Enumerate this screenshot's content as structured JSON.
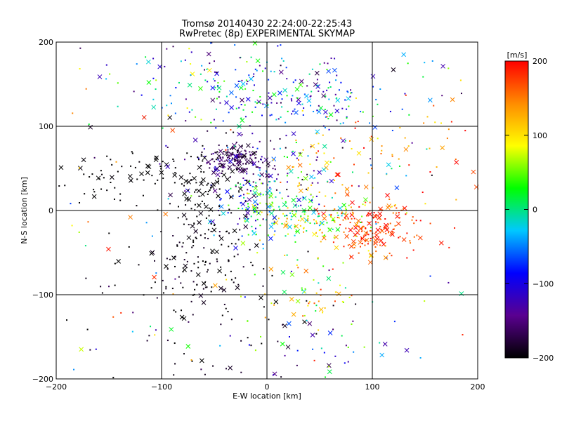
{
  "chart_data": {
    "type": "scatter",
    "title": "Tromsø 20140430 22:24:00-22:25:43",
    "subtitle": "RwPretec (8p) EXPERIMENTAL SKYMAP",
    "xlabel": "E-W location [km]",
    "ylabel": "N-S location [km]",
    "xlim": [
      -200,
      200
    ],
    "ylim": [
      -200,
      200
    ],
    "xticks": [
      -200,
      -100,
      0,
      100,
      200
    ],
    "yticks": [
      -200,
      -100,
      0,
      100,
      200
    ],
    "grid": true,
    "colorbar": {
      "label": "[m/s]",
      "min": -200,
      "max": 200,
      "ticks": [
        -200,
        -100,
        0,
        100,
        200
      ],
      "palette": [
        "#000000",
        "#5a0090",
        "#0000ff",
        "#00c8ff",
        "#00ff00",
        "#ffff00",
        "#ff8c00",
        "#ff0000"
      ]
    },
    "markers": {
      "dot": "small point",
      "cross": "x"
    },
    "clusters": [
      {
        "cx": -30,
        "cy": 62,
        "rx": 12,
        "ry": 8,
        "n": 130,
        "v": -170,
        "dv": 25
      },
      {
        "cx": -5,
        "cy": 45,
        "rx": 35,
        "ry": 28,
        "n": 110,
        "v": -150,
        "dv": 50
      },
      {
        "cx": 10,
        "cy": 135,
        "rx": 60,
        "ry": 22,
        "n": 210,
        "v": -60,
        "dv": 110
      },
      {
        "cx": -50,
        "cy": 175,
        "rx": 55,
        "ry": 22,
        "n": 60,
        "v": -40,
        "dv": 140
      },
      {
        "cx": 100,
        "cy": -20,
        "rx": 25,
        "ry": 18,
        "n": 170,
        "v": 175,
        "dv": 30
      },
      {
        "cx": 40,
        "cy": -10,
        "rx": 35,
        "ry": 15,
        "n": 140,
        "v": 60,
        "dv": 90
      },
      {
        "cx": -10,
        "cy": 10,
        "rx": 25,
        "ry": 22,
        "n": 110,
        "v": -30,
        "dv": 100
      },
      {
        "cx": -120,
        "cy": 40,
        "rx": 40,
        "ry": 15,
        "n": 80,
        "v": -200,
        "dv": 5
      },
      {
        "cx": -60,
        "cy": 15,
        "rx": 25,
        "ry": 30,
        "n": 90,
        "v": -200,
        "dv": 8
      },
      {
        "cx": -60,
        "cy": -60,
        "rx": 35,
        "ry": 25,
        "n": 110,
        "v": -195,
        "dv": 15
      },
      {
        "cx": -50,
        "cy": -130,
        "rx": 50,
        "ry": 40,
        "n": 60,
        "v": -195,
        "dv": 15
      },
      {
        "cx": 40,
        "cy": -100,
        "rx": 25,
        "ry": 25,
        "n": 50,
        "v": 80,
        "dv": 100
      },
      {
        "cx": 50,
        "cy": -165,
        "rx": 40,
        "ry": 25,
        "n": 40,
        "v": -50,
        "dv": 120
      },
      {
        "cx": 130,
        "cy": 60,
        "rx": 50,
        "ry": 40,
        "n": 70,
        "v": 150,
        "dv": 60
      },
      {
        "cx": 50,
        "cy": 45,
        "rx": 40,
        "ry": 30,
        "n": 60,
        "v": 50,
        "dv": 120
      },
      {
        "cx": 0,
        "cy": 0,
        "rx": 190,
        "ry": 190,
        "n": 140,
        "v": 0,
        "dv": 200
      }
    ],
    "cross_fraction": 0.2
  }
}
